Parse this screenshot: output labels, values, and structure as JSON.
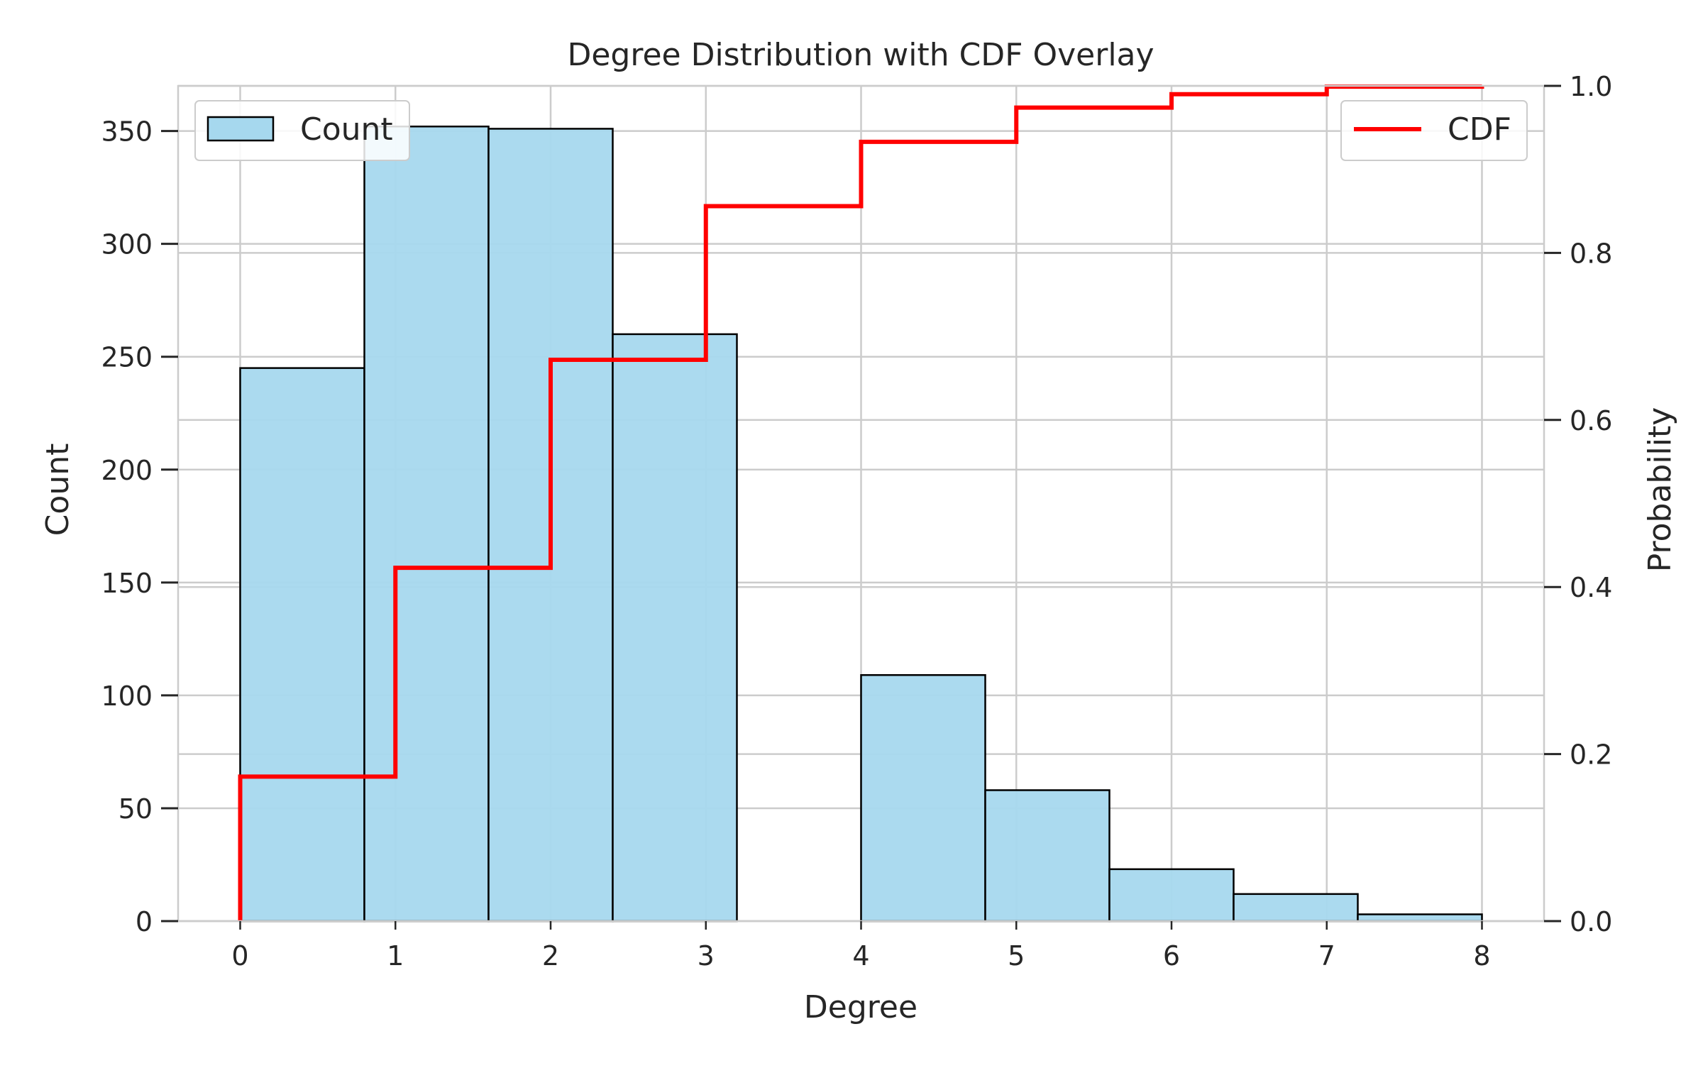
{
  "chart_data": {
    "type": "bar",
    "title": "Degree Distribution with CDF Overlay",
    "xlabel": "Degree",
    "ylabel": "Count",
    "y2label": "Probability",
    "xlim": [
      -0.4,
      8.4
    ],
    "ylim": [
      0,
      370
    ],
    "y2lim": [
      0,
      1.0
    ],
    "x_ticks": [
      0,
      1,
      2,
      3,
      4,
      5,
      6,
      7,
      8
    ],
    "y_ticks": [
      0,
      50,
      100,
      150,
      200,
      250,
      300,
      350
    ],
    "y2_ticks": [
      0.0,
      0.2,
      0.4,
      0.6,
      0.8,
      1.0
    ],
    "grid": true,
    "histogram": {
      "name": "Count",
      "bin_edges": [
        0,
        0.8,
        1.6,
        2.4,
        3.2,
        4.0,
        4.8,
        5.6,
        6.4,
        7.2,
        8.0
      ],
      "counts": [
        245,
        352,
        351,
        260,
        0,
        109,
        58,
        23,
        12,
        3
      ],
      "color": "#a6d8ee",
      "edge_color": "#000000"
    },
    "cdf": {
      "name": "CDF",
      "x": [
        0,
        1,
        2,
        3,
        4,
        5,
        6,
        7,
        8
      ],
      "y": [
        0.173,
        0.423,
        0.672,
        0.856,
        0.933,
        0.974,
        0.99,
        0.999,
        1.0
      ],
      "color": "#ff0000"
    },
    "legends": [
      {
        "series": "Count",
        "placement": "upper-left"
      },
      {
        "series": "CDF",
        "placement": "upper-right"
      }
    ]
  }
}
